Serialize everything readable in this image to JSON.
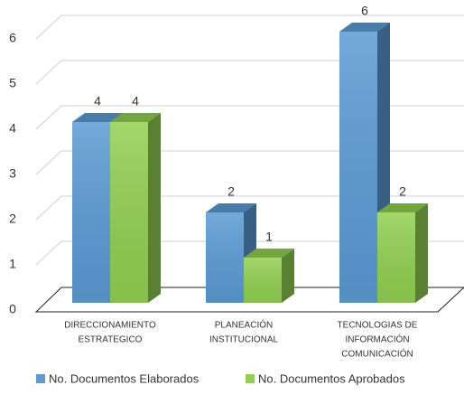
{
  "chart_data": {
    "type": "bar3d",
    "categories": [
      [
        "DIRECCIONAMIENTO",
        "ESTRATEGICO"
      ],
      [
        "PLANEACIÓN",
        "INSTITUCIONAL"
      ],
      [
        "TECNOLOGIAS DE",
        "INFORMACIÓN",
        "COMUNICACIÓN"
      ]
    ],
    "series": [
      {
        "name": "No. Documentos Elaborados",
        "color": "#5b9bd5",
        "values": [
          4,
          2,
          6
        ]
      },
      {
        "name": "No. Documentos Aprobados",
        "color": "#92d050",
        "values": [
          4,
          1,
          2
        ]
      }
    ],
    "ylim": [
      0,
      6
    ],
    "yticks": [
      0,
      1,
      2,
      3,
      4,
      5,
      6
    ],
    "grid": true,
    "legend": "bottom"
  }
}
